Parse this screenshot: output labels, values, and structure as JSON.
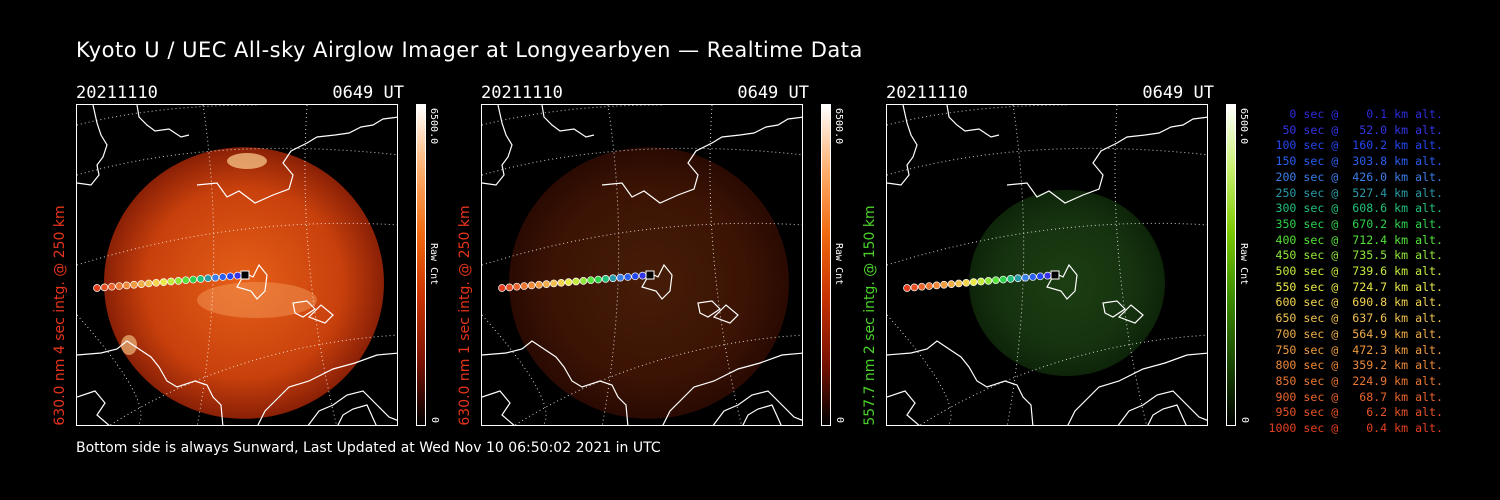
{
  "title": "Kyoto U / UEC All-sky Airglow Imager at Longyearbyen — Realtime Data",
  "panels": [
    {
      "date": "20211110",
      "time": "0649 UT",
      "label": "630.0 nm 4 sec intg. @ 250 km",
      "label_color": "#e6341c",
      "colorbar_max": "6500.0",
      "colorbar_unit": "Raw Cnt",
      "colorbar_min": "0",
      "intensity": 1.0,
      "palette": "red"
    },
    {
      "date": "20211110",
      "time": "0649 UT",
      "label": "630.0 nm 1 sec intg. @ 250 km",
      "label_color": "#e6341c",
      "colorbar_max": "6500.0",
      "colorbar_unit": "Raw Cnt",
      "colorbar_min": "0",
      "intensity": 0.3,
      "palette": "red"
    },
    {
      "date": "20211110",
      "time": "0649 UT",
      "label": "557.7 nm 2 sec intg. @ 150 km",
      "label_color": "#4bd22a",
      "colorbar_max": "6500.0",
      "colorbar_unit": "Raw Cnt",
      "colorbar_min": "0",
      "intensity": 0.45,
      "palette": "green"
    }
  ],
  "legend": [
    {
      "text": "   0 sec @    0.1 km alt.",
      "color": "#2b2bd9"
    },
    {
      "text": "  50 sec @   52.0 km alt.",
      "color": "#3434e6"
    },
    {
      "text": " 100 sec @  160.2 km alt.",
      "color": "#2246f0"
    },
    {
      "text": " 150 sec @  303.8 km alt.",
      "color": "#2a5ef0"
    },
    {
      "text": " 200 sec @  426.0 km alt.",
      "color": "#3b7ee8"
    },
    {
      "text": " 250 sec @  527.4 km alt.",
      "color": "#2a9aa8"
    },
    {
      "text": " 300 sec @  608.6 km alt.",
      "color": "#22c07a"
    },
    {
      "text": " 350 sec @  670.2 km alt.",
      "color": "#2ed14a"
    },
    {
      "text": " 400 sec @  712.4 km alt.",
      "color": "#55e23a"
    },
    {
      "text": " 450 sec @  735.5 km alt.",
      "color": "#8ee63a"
    },
    {
      "text": " 500 sec @  739.6 km alt.",
      "color": "#c4ea3e"
    },
    {
      "text": " 550 sec @  724.7 km alt.",
      "color": "#e8e84a"
    },
    {
      "text": " 600 sec @  690.8 km alt.",
      "color": "#f2d34e"
    },
    {
      "text": " 650 sec @  637.6 km alt.",
      "color": "#f0c050"
    },
    {
      "text": " 700 sec @  564.9 km alt.",
      "color": "#efac48"
    },
    {
      "text": " 750 sec @  472.3 km alt.",
      "color": "#ee9a40"
    },
    {
      "text": " 800 sec @  359.2 km alt.",
      "color": "#ec8838"
    },
    {
      "text": " 850 sec @  224.9 km alt.",
      "color": "#ea7632"
    },
    {
      "text": " 900 sec @   68.7 km alt.",
      "color": "#e8642c"
    },
    {
      "text": " 950 sec @    6.2 km alt.",
      "color": "#e65226"
    },
    {
      "text": "1000 sec @    0.4 km alt.",
      "color": "#e44020"
    }
  ],
  "footer": "Bottom side is always Sunward, Last Updated at Wed Nov 10 06:50:02 2021 in UTC",
  "colors": {
    "background": "#000000",
    "text": "#ffffff",
    "red_label": "#e6341c",
    "green_label": "#4bd22a"
  }
}
